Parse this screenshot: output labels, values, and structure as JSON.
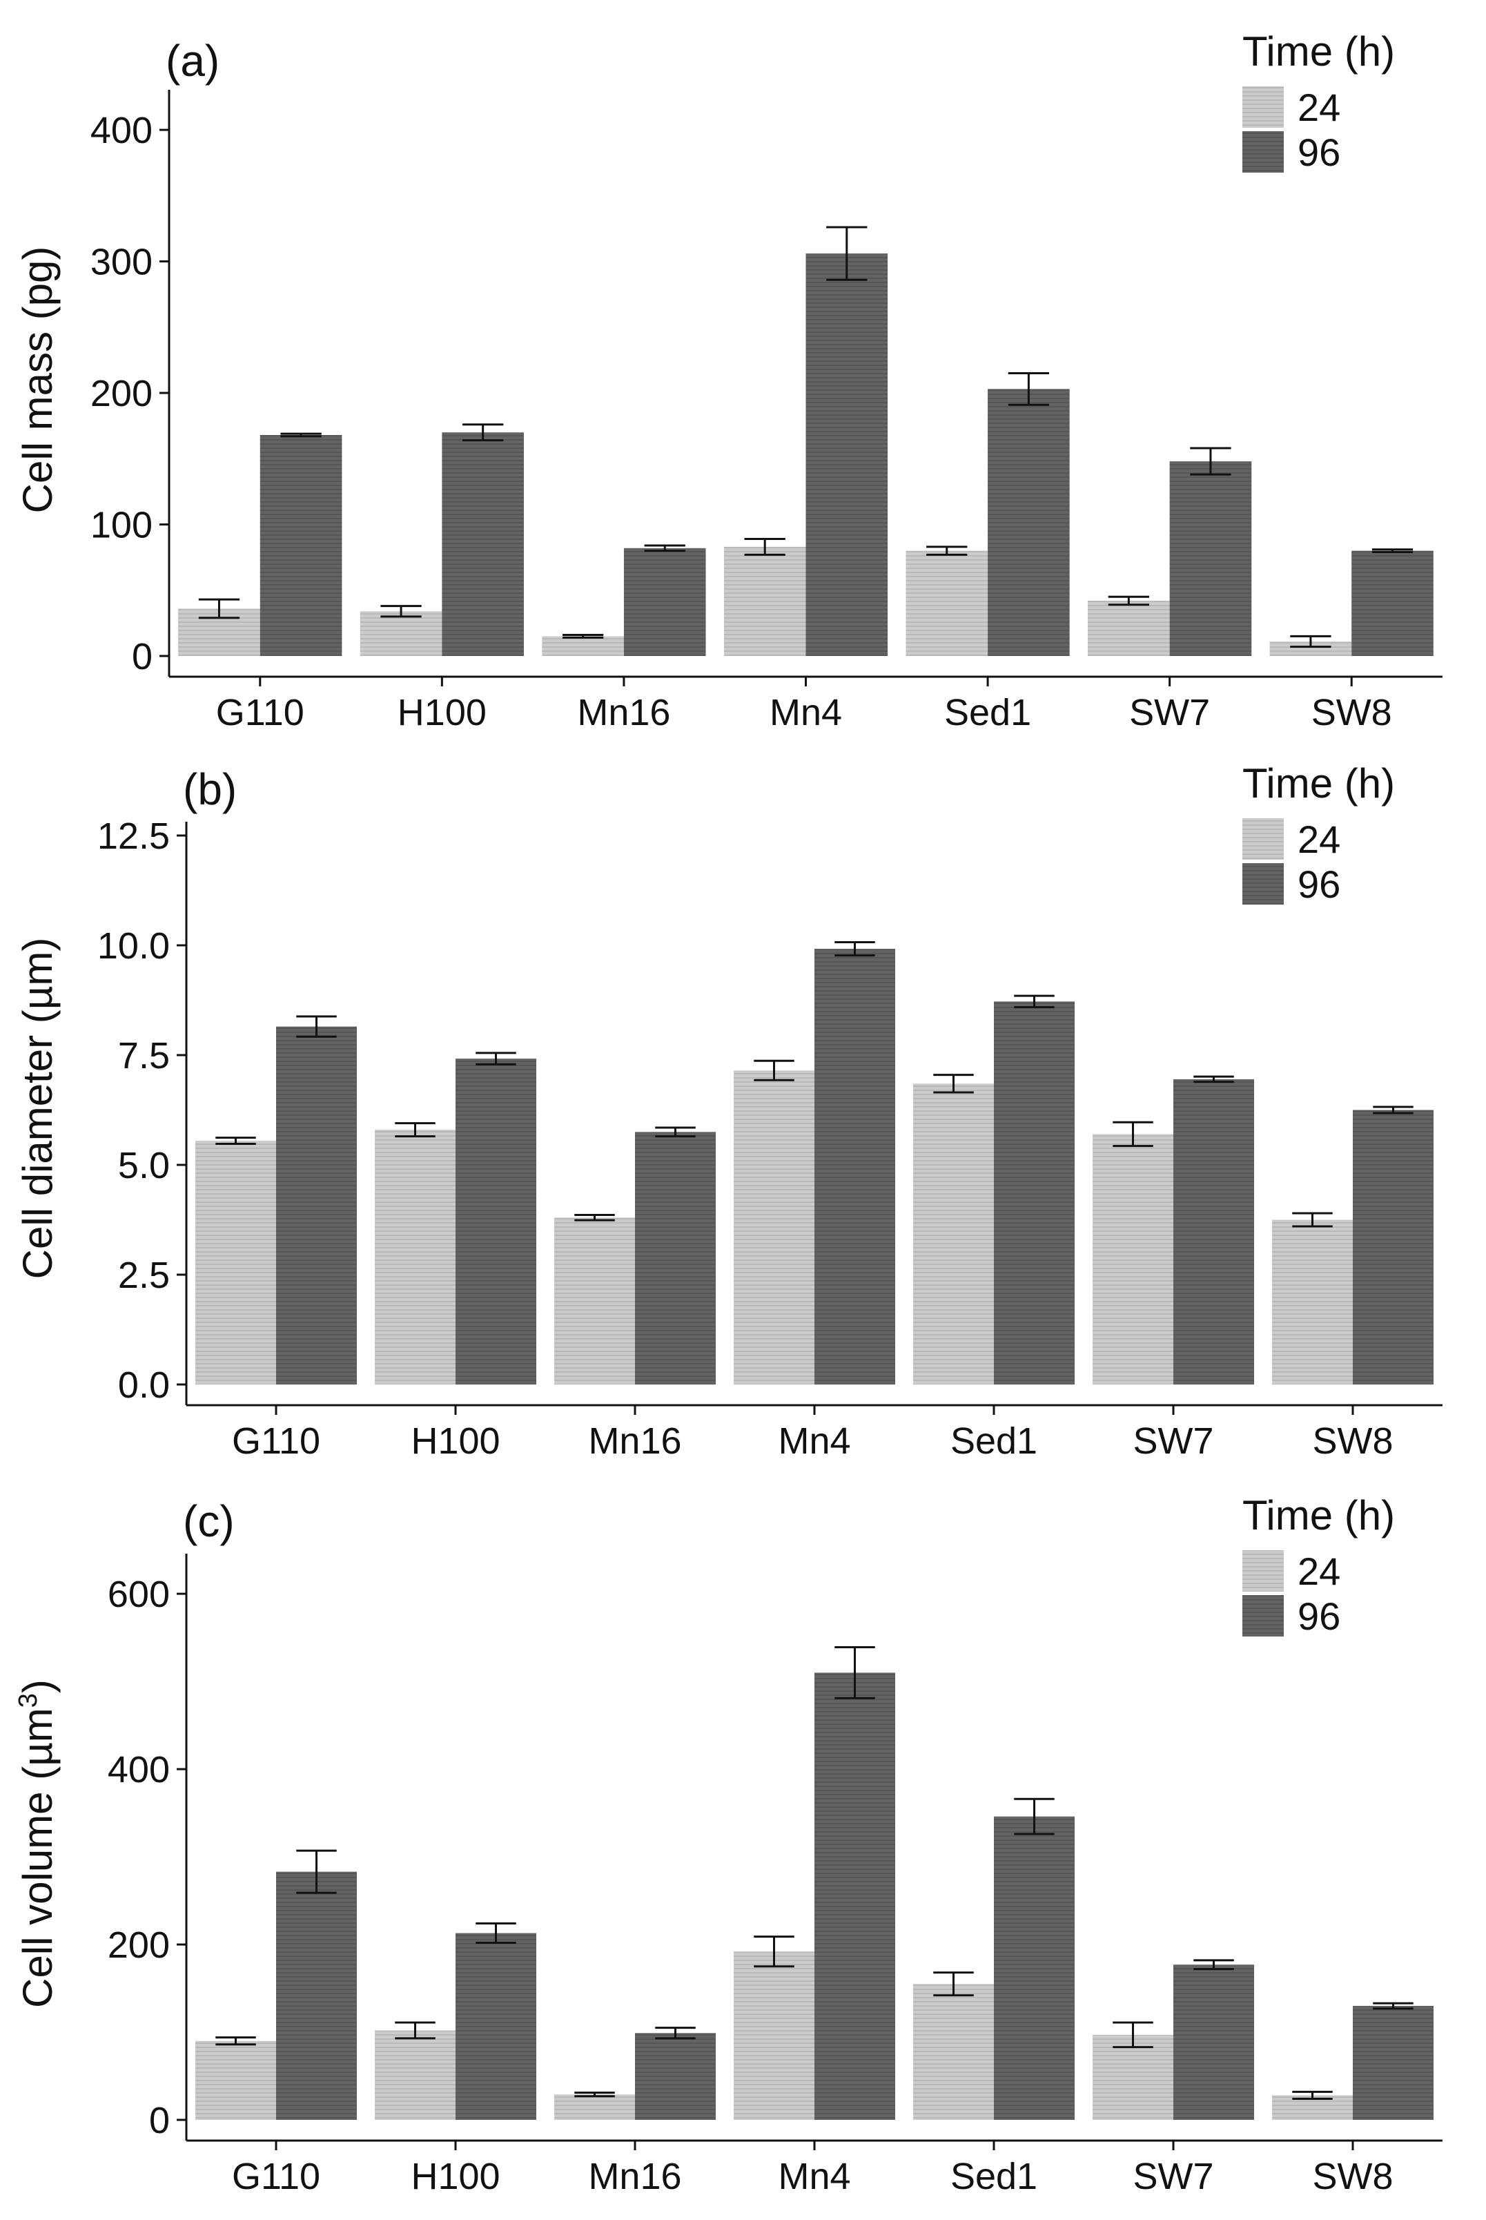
{
  "chart_data": [
    {
      "panel_label": "(a)",
      "type": "bar",
      "categories": [
        "G110",
        "H100",
        "Mn16",
        "Mn4",
        "Sed1",
        "SW7",
        "SW8"
      ],
      "ylabel": "Cell mass (pg)",
      "ylim": [
        0,
        420
      ],
      "yticks": [
        "0",
        "100",
        "200",
        "300",
        "400"
      ],
      "series": [
        {
          "name": "24",
          "color": "#c8c8c8",
          "values": [
            36,
            34,
            15,
            83,
            80,
            42,
            11
          ],
          "errors": [
            7,
            4,
            1,
            6,
            3,
            3,
            4
          ]
        },
        {
          "name": "96",
          "color": "#5f5f5f",
          "values": [
            168,
            170,
            82,
            306,
            203,
            148,
            80
          ],
          "errors": [
            1,
            6,
            2,
            20,
            12,
            10,
            1
          ]
        }
      ],
      "legend": {
        "title": "Time (h)",
        "position": "top-right"
      },
      "grid": false
    },
    {
      "panel_label": "(b)",
      "type": "bar",
      "categories": [
        "G110",
        "H100",
        "Mn16",
        "Mn4",
        "Sed1",
        "SW7",
        "SW8"
      ],
      "ylabel": "Cell diameter (µm)",
      "ylim": [
        0,
        12.5
      ],
      "yticks": [
        "0.0",
        "2.5",
        "5.0",
        "7.5",
        "10.0",
        "12.5"
      ],
      "series": [
        {
          "name": "24",
          "color": "#c8c8c8",
          "values": [
            5.55,
            5.8,
            3.8,
            7.15,
            6.85,
            5.7,
            3.75
          ],
          "errors": [
            0.07,
            0.15,
            0.06,
            0.22,
            0.2,
            0.27,
            0.15
          ]
        },
        {
          "name": "96",
          "color": "#5f5f5f",
          "values": [
            8.15,
            7.42,
            5.75,
            9.92,
            8.72,
            6.95,
            6.25
          ],
          "errors": [
            0.23,
            0.13,
            0.1,
            0.15,
            0.13,
            0.06,
            0.07
          ]
        }
      ],
      "legend": {
        "title": "Time (h)",
        "position": "top-right"
      },
      "grid": false
    },
    {
      "panel_label": "(c)",
      "type": "bar",
      "categories": [
        "G110",
        "H100",
        "Mn16",
        "Mn4",
        "Sed1",
        "SW7",
        "SW8"
      ],
      "ylabel": "Cell volume (µm",
      "ylabel_sup": "3",
      "ylabel_suffix": ")",
      "ylim": [
        0,
        630
      ],
      "yticks": [
        "0",
        "200",
        "400",
        "600"
      ],
      "series": [
        {
          "name": "24",
          "color": "#c8c8c8",
          "values": [
            90,
            102,
            29,
            192,
            155,
            97,
            28
          ],
          "errors": [
            4,
            9,
            2,
            17,
            13,
            14,
            4
          ]
        },
        {
          "name": "96",
          "color": "#5f5f5f",
          "values": [
            283,
            213,
            99,
            510,
            346,
            177,
            130
          ],
          "errors": [
            24,
            11,
            6,
            29,
            20,
            5,
            3
          ]
        }
      ],
      "legend": {
        "title": "Time (h)",
        "position": "top-right"
      },
      "grid": false
    }
  ]
}
